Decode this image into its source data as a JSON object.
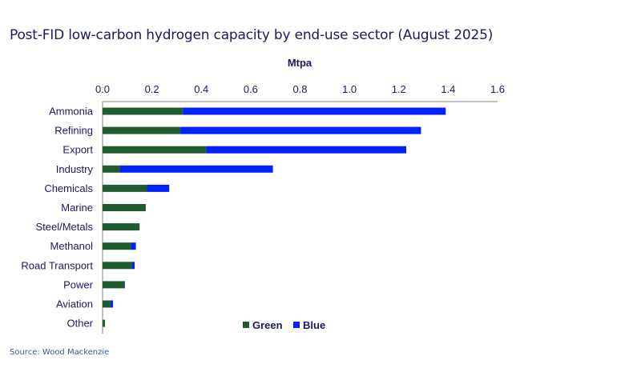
{
  "chart_data": {
    "type": "bar",
    "orientation": "horizontal",
    "stacked": true,
    "title": "Post-FID low-carbon hydrogen capacity by end-use sector (August 2025)",
    "xlabel": "Mtpa",
    "ylabel": "",
    "xlim": [
      0,
      1.6
    ],
    "xticks": [
      "0.0",
      "0.2",
      "0.4",
      "0.6",
      "0.8",
      "1.0",
      "1.2",
      "1.4",
      "1.6"
    ],
    "xtick_values": [
      0,
      0.2,
      0.4,
      0.6,
      0.8,
      1.0,
      1.2,
      1.4,
      1.6
    ],
    "axis_position": "top",
    "grid": false,
    "legend_position": "bottom-center",
    "categories": [
      "Ammonia",
      "Refining",
      "Export",
      "Industry",
      "Chemicals",
      "Marine",
      "Steel/Metals",
      "Methanol",
      "Road Transport",
      "Power",
      "Aviation",
      "Other"
    ],
    "series": [
      {
        "name": "Green",
        "color": "#1f5c2e",
        "values": [
          0.325,
          0.315,
          0.42,
          0.07,
          0.18,
          0.175,
          0.15,
          0.115,
          0.12,
          0.088,
          0.032,
          0.01
        ]
      },
      {
        "name": "Blue",
        "color": "#0022ff",
        "values": [
          1.065,
          0.975,
          0.81,
          0.62,
          0.09,
          0.0,
          0.0,
          0.02,
          0.01,
          0.002,
          0.01,
          0.0
        ]
      }
    ],
    "source": "Source: Wood Mackenzie"
  }
}
